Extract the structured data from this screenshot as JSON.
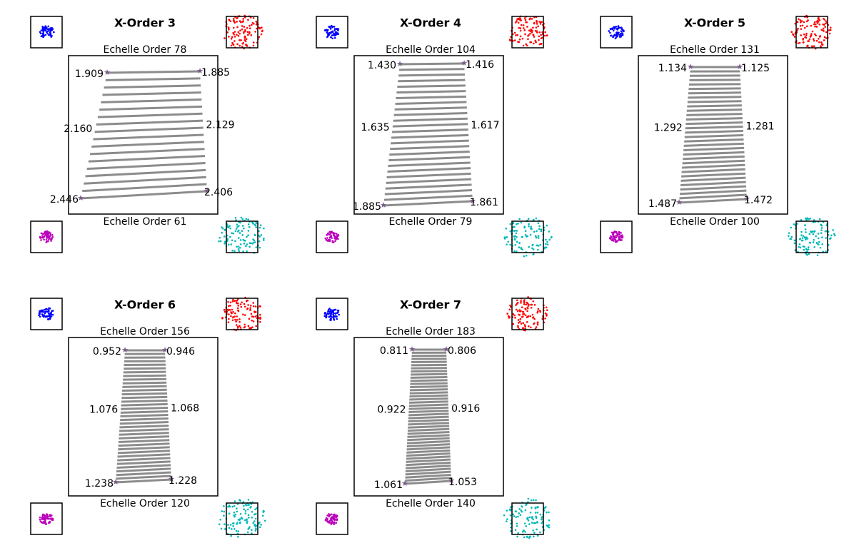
{
  "order_prefix": "Echelle Order",
  "panels": [
    {
      "title": "X-Order 3",
      "top_order": 78,
      "bottom_order": 61,
      "top_left": "1.909",
      "top_right": "1.885",
      "mid_left": "2.160",
      "mid_right": "2.129",
      "bottom_left": "2.446",
      "bottom_right": "2.406"
    },
    {
      "title": "X-Order 4",
      "top_order": 104,
      "bottom_order": 79,
      "top_left": "1.430",
      "top_right": "1.416",
      "mid_left": "1.635",
      "mid_right": "1.617",
      "bottom_left": "1.885",
      "bottom_right": "1.861"
    },
    {
      "title": "X-Order 5",
      "top_order": 131,
      "bottom_order": 100,
      "top_left": "1.134",
      "top_right": "1.125",
      "mid_left": "1.292",
      "mid_right": "1.281",
      "bottom_left": "1.487",
      "bottom_right": "1.472"
    },
    {
      "title": "X-Order 6",
      "top_order": 156,
      "bottom_order": 120,
      "top_left": "0.952",
      "top_right": "0.946",
      "mid_left": "1.076",
      "mid_right": "1.068",
      "bottom_left": "1.238",
      "bottom_right": "1.228"
    },
    {
      "title": "X-Order 7",
      "top_order": 183,
      "bottom_order": 140,
      "top_left": "0.811",
      "top_right": "0.806",
      "mid_left": "0.922",
      "mid_right": "0.916",
      "bottom_left": "1.061",
      "bottom_right": "1.053"
    }
  ]
}
